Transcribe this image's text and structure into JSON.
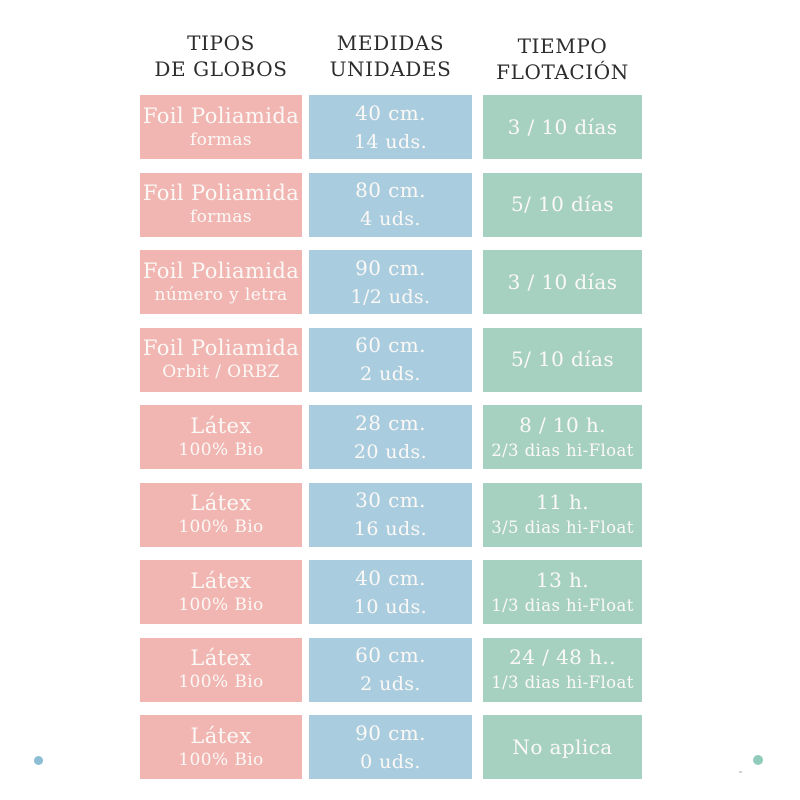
{
  "headers": {
    "tipos": {
      "line1": "TIPOS",
      "line2": "DE GLOBOS"
    },
    "medidas": {
      "line1": "MEDIDAS",
      "line2": "UNIDADES"
    },
    "tiempo": {
      "line1": "TIEMPO",
      "line2": "FLOTACIÓN"
    }
  },
  "rows": [
    {
      "tipo": [
        "Foil Poliamida",
        "formas"
      ],
      "medida": [
        "40 cm.",
        "14 uds."
      ],
      "tiempo": [
        "3 / 10 días"
      ]
    },
    {
      "tipo": [
        "Foil Poliamida",
        "formas"
      ],
      "medida": [
        "80 cm.",
        "4 uds."
      ],
      "tiempo": [
        "5/ 10 días"
      ]
    },
    {
      "tipo": [
        "Foil Poliamida",
        "número y letra"
      ],
      "medida": [
        "90 cm.",
        "1/2 uds."
      ],
      "tiempo": [
        "3 / 10 días"
      ]
    },
    {
      "tipo": [
        "Foil Poliamida",
        "Orbit / ORBZ"
      ],
      "medida": [
        "60 cm.",
        "2 uds."
      ],
      "tiempo": [
        "5/ 10 días"
      ]
    },
    {
      "tipo": [
        "Látex",
        "100% Bio"
      ],
      "medida": [
        "28 cm.",
        "20 uds."
      ],
      "tiempo": [
        "8 / 10 h.",
        "2/3 dias hi-Float"
      ]
    },
    {
      "tipo": [
        "Látex",
        "100% Bio"
      ],
      "medida": [
        "30 cm.",
        "16 uds."
      ],
      "tiempo": [
        "11 h.",
        "3/5 dias hi-Float"
      ]
    },
    {
      "tipo": [
        "Látex",
        "100% Bio"
      ],
      "medida": [
        "40 cm.",
        "10 uds."
      ],
      "tiempo": [
        "13 h.",
        "1/3 dias hi-Float"
      ]
    },
    {
      "tipo": [
        "Látex",
        "100% Bio"
      ],
      "medida": [
        "60 cm.",
        "2 uds."
      ],
      "tiempo": [
        "24 / 48 h..",
        "1/3 dias hi-Float"
      ]
    },
    {
      "tipo": [
        "Látex",
        "100% Bio"
      ],
      "medida": [
        "90 cm.",
        "0 uds."
      ],
      "tiempo": [
        "No aplica"
      ]
    }
  ],
  "colors": {
    "background": "#ffffff",
    "tipos_cell": "#f1b6b2",
    "medidas_cell": "#a9cdde",
    "tiempo_cell": "#a6d1c1",
    "header_text": "#2d2d2d",
    "cell_text": "#fbf8f6",
    "dot_bottom_left": "#8cbdd4",
    "dot_bottom_right": "#90cbbc"
  },
  "chart_data": {
    "type": "table",
    "title": "",
    "columns": [
      "TIPOS DE GLOBOS",
      "MEDIDAS UNIDADES",
      "TIEMPO FLOTACIÓN"
    ],
    "rows": [
      [
        "Foil Poliamida formas",
        "40 cm. 14 uds.",
        "3 / 10 días"
      ],
      [
        "Foil Poliamida formas",
        "80 cm. 4 uds.",
        "5/ 10 días"
      ],
      [
        "Foil Poliamida número y letra",
        "90 cm. 1/2 uds.",
        "3 / 10 días"
      ],
      [
        "Foil Poliamida Orbit / ORBZ",
        "60 cm. 2 uds.",
        "5/ 10 días"
      ],
      [
        "Látex 100% Bio",
        "28 cm. 20 uds.",
        "8 / 10 h. 2/3 dias hi-Float"
      ],
      [
        "Látex 100% Bio",
        "30 cm. 16 uds.",
        "11 h. 3/5 dias hi-Float"
      ],
      [
        "Látex 100% Bio",
        "40 cm. 10 uds.",
        "13 h. 1/3 dias hi-Float"
      ],
      [
        "Látex 100% Bio",
        "60 cm. 2 uds.",
        "24 / 48 h.. 1/3 dias hi-Float"
      ],
      [
        "Látex 100% Bio",
        "90 cm. 0 uds.",
        "No aplica"
      ]
    ]
  }
}
